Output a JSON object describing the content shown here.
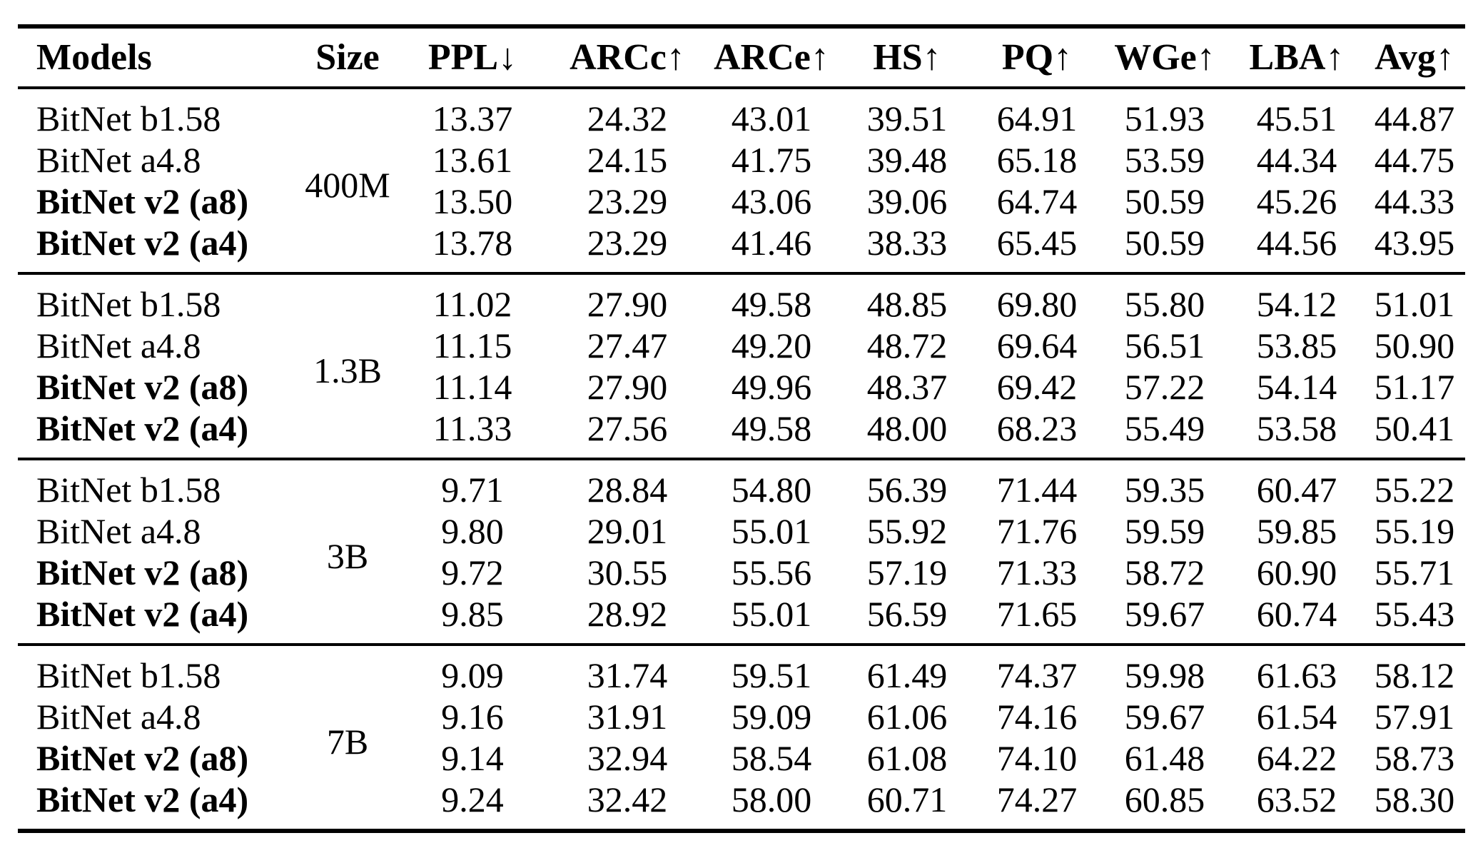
{
  "page": {
    "background": "#ffffff",
    "text_color": "#000000",
    "rule_color": "#000000"
  },
  "table": {
    "headers": [
      "Models",
      "Size",
      "PPL↓",
      "ARCc↑",
      "ARCe↑",
      "HS↑",
      "PQ↑",
      "WGe↑",
      "LBA↑",
      "Avg↑"
    ],
    "groups": [
      {
        "size": "400M",
        "rows": [
          {
            "model": "BitNet b1.58",
            "bold": false,
            "values": [
              "13.37",
              "24.32",
              "43.01",
              "39.51",
              "64.91",
              "51.93",
              "45.51",
              "44.87"
            ]
          },
          {
            "model": "BitNet a4.8",
            "bold": false,
            "values": [
              "13.61",
              "24.15",
              "41.75",
              "39.48",
              "65.18",
              "53.59",
              "44.34",
              "44.75"
            ]
          },
          {
            "model": "BitNet v2 (a8)",
            "bold": true,
            "values": [
              "13.50",
              "23.29",
              "43.06",
              "39.06",
              "64.74",
              "50.59",
              "45.26",
              "44.33"
            ]
          },
          {
            "model": "BitNet v2 (a4)",
            "bold": true,
            "values": [
              "13.78",
              "23.29",
              "41.46",
              "38.33",
              "65.45",
              "50.59",
              "44.56",
              "43.95"
            ]
          }
        ]
      },
      {
        "size": "1.3B",
        "rows": [
          {
            "model": "BitNet b1.58",
            "bold": false,
            "values": [
              "11.02",
              "27.90",
              "49.58",
              "48.85",
              "69.80",
              "55.80",
              "54.12",
              "51.01"
            ]
          },
          {
            "model": "BitNet a4.8",
            "bold": false,
            "values": [
              "11.15",
              "27.47",
              "49.20",
              "48.72",
              "69.64",
              "56.51",
              "53.85",
              "50.90"
            ]
          },
          {
            "model": "BitNet v2 (a8)",
            "bold": true,
            "values": [
              "11.14",
              "27.90",
              "49.96",
              "48.37",
              "69.42",
              "57.22",
              "54.14",
              "51.17"
            ]
          },
          {
            "model": "BitNet v2 (a4)",
            "bold": true,
            "values": [
              "11.33",
              "27.56",
              "49.58",
              "48.00",
              "68.23",
              "55.49",
              "53.58",
              "50.41"
            ]
          }
        ]
      },
      {
        "size": "3B",
        "rows": [
          {
            "model": "BitNet b1.58",
            "bold": false,
            "values": [
              "9.71",
              "28.84",
              "54.80",
              "56.39",
              "71.44",
              "59.35",
              "60.47",
              "55.22"
            ]
          },
          {
            "model": "BitNet a4.8",
            "bold": false,
            "values": [
              "9.80",
              "29.01",
              "55.01",
              "55.92",
              "71.76",
              "59.59",
              "59.85",
              "55.19"
            ]
          },
          {
            "model": "BitNet v2 (a8)",
            "bold": true,
            "values": [
              "9.72",
              "30.55",
              "55.56",
              "57.19",
              "71.33",
              "58.72",
              "60.90",
              "55.71"
            ]
          },
          {
            "model": "BitNet v2 (a4)",
            "bold": true,
            "values": [
              "9.85",
              "28.92",
              "55.01",
              "56.59",
              "71.65",
              "59.67",
              "60.74",
              "55.43"
            ]
          }
        ]
      },
      {
        "size": "7B",
        "rows": [
          {
            "model": "BitNet b1.58",
            "bold": false,
            "values": [
              "9.09",
              "31.74",
              "59.51",
              "61.49",
              "74.37",
              "59.98",
              "61.63",
              "58.12"
            ]
          },
          {
            "model": "BitNet a4.8",
            "bold": false,
            "values": [
              "9.16",
              "31.91",
              "59.09",
              "61.06",
              "74.16",
              "59.67",
              "61.54",
              "57.91"
            ]
          },
          {
            "model": "BitNet v2 (a8)",
            "bold": true,
            "values": [
              "9.14",
              "32.94",
              "58.54",
              "61.08",
              "74.10",
              "61.48",
              "64.22",
              "58.73"
            ]
          },
          {
            "model": "BitNet v2 (a4)",
            "bold": true,
            "values": [
              "9.24",
              "32.42",
              "58.00",
              "60.71",
              "74.27",
              "60.85",
              "63.52",
              "58.30"
            ]
          }
        ]
      }
    ]
  }
}
